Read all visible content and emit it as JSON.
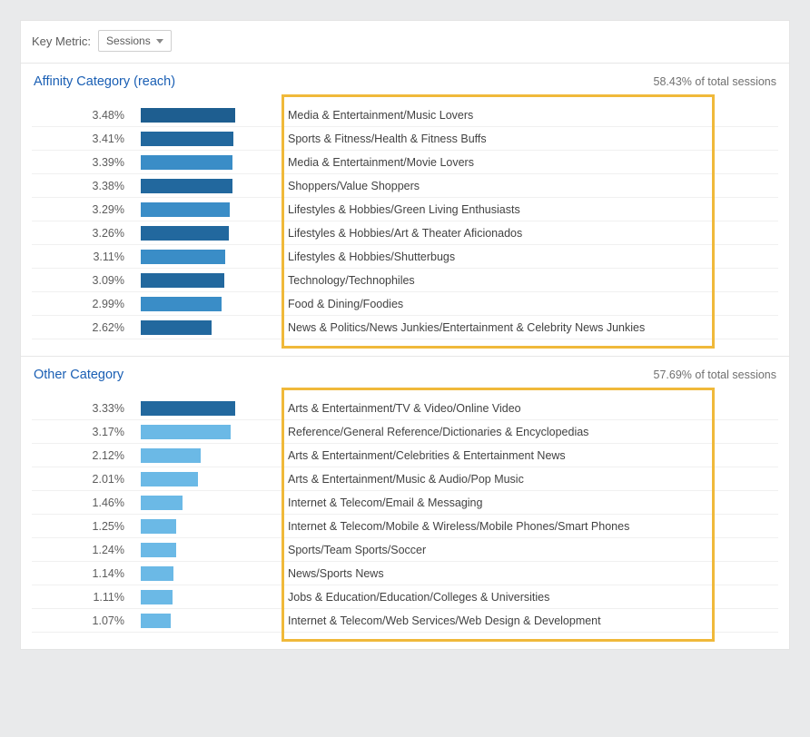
{
  "keyMetric": {
    "label": "Key Metric:",
    "selected": "Sessions"
  },
  "colors": {
    "bar_affinity_primary": "#22689e",
    "bar_affinity_row0": "#1e5e90",
    "bar_affinity_secondary": "#3a8dc7",
    "bar_other_primary": "#22689e",
    "bar_other_secondary": "#6bb9e6",
    "highlight_border": "#f0b93a"
  },
  "sections": [
    {
      "id": "affinity",
      "title": "Affinity Category (reach)",
      "summary": "58.43% of total sessions",
      "max_value": 3.48,
      "rows": [
        {
          "pct": "3.48%",
          "value": 3.48,
          "label": "Media & Entertainment/Music Lovers",
          "color": "#1e5e90"
        },
        {
          "pct": "3.41%",
          "value": 3.41,
          "label": "Sports & Fitness/Health & Fitness Buffs",
          "color": "#22689e"
        },
        {
          "pct": "3.39%",
          "value": 3.39,
          "label": "Media & Entertainment/Movie Lovers",
          "color": "#3a8dc7"
        },
        {
          "pct": "3.38%",
          "value": 3.38,
          "label": "Shoppers/Value Shoppers",
          "color": "#22689e"
        },
        {
          "pct": "3.29%",
          "value": 3.29,
          "label": "Lifestyles & Hobbies/Green Living Enthusiasts",
          "color": "#3a8dc7"
        },
        {
          "pct": "3.26%",
          "value": 3.26,
          "label": "Lifestyles & Hobbies/Art & Theater Aficionados",
          "color": "#22689e"
        },
        {
          "pct": "3.11%",
          "value": 3.11,
          "label": "Lifestyles & Hobbies/Shutterbugs",
          "color": "#3a8dc7"
        },
        {
          "pct": "3.09%",
          "value": 3.09,
          "label": "Technology/Technophiles",
          "color": "#22689e"
        },
        {
          "pct": "2.99%",
          "value": 2.99,
          "label": "Food & Dining/Foodies",
          "color": "#3a8dc7"
        },
        {
          "pct": "2.62%",
          "value": 2.62,
          "label": "News & Politics/News Junkies/Entertainment & Celebrity News Junkies",
          "color": "#22689e"
        }
      ]
    },
    {
      "id": "other",
      "title": "Other Category",
      "summary": "57.69% of total sessions",
      "max_value": 3.33,
      "rows": [
        {
          "pct": "3.33%",
          "value": 3.33,
          "label": "Arts & Entertainment/TV & Video/Online Video",
          "color": "#22689e"
        },
        {
          "pct": "3.17%",
          "value": 3.17,
          "label": "Reference/General Reference/Dictionaries & Encyclopedias",
          "color": "#6bb9e6"
        },
        {
          "pct": "2.12%",
          "value": 2.12,
          "label": "Arts & Entertainment/Celebrities & Entertainment News",
          "color": "#6bb9e6"
        },
        {
          "pct": "2.01%",
          "value": 2.01,
          "label": "Arts & Entertainment/Music & Audio/Pop Music",
          "color": "#6bb9e6"
        },
        {
          "pct": "1.46%",
          "value": 1.46,
          "label": "Internet & Telecom/Email & Messaging",
          "color": "#6bb9e6"
        },
        {
          "pct": "1.25%",
          "value": 1.25,
          "label": "Internet & Telecom/Mobile & Wireless/Mobile Phones/Smart Phones",
          "color": "#6bb9e6"
        },
        {
          "pct": "1.24%",
          "value": 1.24,
          "label": "Sports/Team Sports/Soccer",
          "color": "#6bb9e6"
        },
        {
          "pct": "1.14%",
          "value": 1.14,
          "label": "News/Sports News",
          "color": "#6bb9e6"
        },
        {
          "pct": "1.11%",
          "value": 1.11,
          "label": "Jobs & Education/Education/Colleges & Universities",
          "color": "#6bb9e6"
        },
        {
          "pct": "1.07%",
          "value": 1.07,
          "label": "Internet & Telecom/Web Services/Web Design & Development",
          "color": "#6bb9e6"
        }
      ]
    }
  ]
}
